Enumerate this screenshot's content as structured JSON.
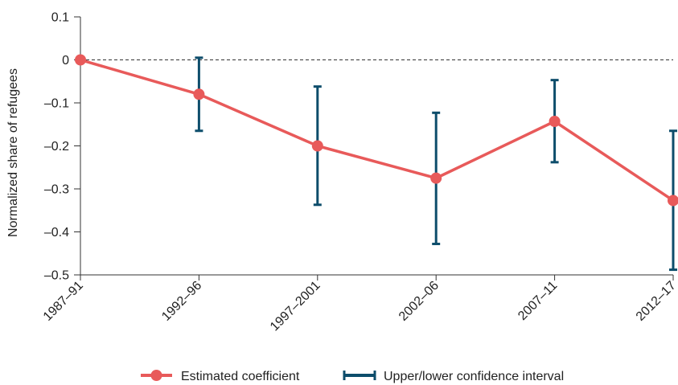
{
  "chart_data": {
    "type": "line",
    "categories": [
      "1987–91",
      "1992–96",
      "1997–2001",
      "2002–06",
      "2007–11",
      "2012–17"
    ],
    "series": [
      {
        "name": "Estimated coefficient",
        "values": [
          0,
          -0.08,
          -0.2,
          -0.275,
          -0.143,
          -0.327
        ],
        "color": "#e85a5a"
      }
    ],
    "confidence_interval": {
      "name": "Upper/lower confidence interval",
      "color": "#0d4d6b",
      "upper": [
        null,
        0.005,
        -0.062,
        -0.123,
        -0.047,
        -0.165
      ],
      "lower": [
        null,
        -0.165,
        -0.337,
        -0.428,
        -0.238,
        -0.488
      ]
    },
    "ylabel": "Normalized share of refugees",
    "xlabel": "",
    "ylim": [
      -0.5,
      0.1
    ],
    "yticks": [
      0.1,
      0,
      -0.1,
      -0.2,
      -0.3,
      -0.4,
      -0.5
    ],
    "ytick_labels": [
      "0.1",
      "0",
      "–0.1",
      "–0.2",
      "–0.3",
      "–0.4",
      "–0.5"
    ],
    "zero_line": "dashed",
    "grid": false,
    "legend_position": "bottom-center"
  }
}
